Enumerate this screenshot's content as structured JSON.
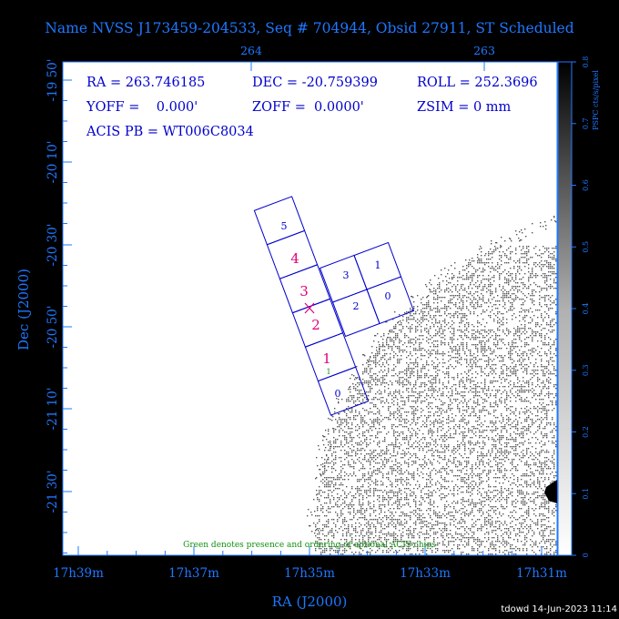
{
  "title": "Name NVSS J173459-204533, Seq # 704944, Obsid 27911, ST Scheduled",
  "info": {
    "ra": "RA = 263.746185",
    "dec": "DEC = -20.759399",
    "roll": "ROLL = 252.3696",
    "yoff": "YOFF =    0.000'",
    "zoff": "ZOFF =  0.0000'",
    "zsim": "ZSIM = 0 mm",
    "acis": "ACIS PB = WT006C8034"
  },
  "note": "Green denotes presence and ordering of optional ACIS chips",
  "footer": "tdowd 14-Jun-2023 11:14",
  "colors": {
    "axis": "#1e78ff",
    "text": "#0000cc",
    "magenta": "#e0007a",
    "green": "#109010"
  },
  "chart_data": {
    "type": "scatter",
    "xlabel": "RA (J2000)",
    "ylabel": "Dec (J2000)",
    "x_ticks_bottom": [
      "17h39m",
      "17h37m",
      "17h35m",
      "17h33m",
      "17h31m"
    ],
    "x_ticks_top": [
      "264",
      "263"
    ],
    "y_ticks": [
      "-19 50'",
      "-20 10'",
      "-20 30'",
      "-20 50'",
      "-21 10'",
      "-21 30'"
    ],
    "colorbar": {
      "label": "PSPC cts/s/pixel",
      "ticks": [
        "0",
        "0.1",
        "0.2",
        "0.3",
        "0.4",
        "0.5",
        "0.6",
        "0.7",
        "0.8"
      ],
      "range": [
        0,
        0.8
      ]
    },
    "chips": [
      {
        "label": "5",
        "style": "plain"
      },
      {
        "label": "4",
        "style": "selected"
      },
      {
        "label": "3",
        "style": "selected"
      },
      {
        "label": "2",
        "style": "selected"
      },
      {
        "label": "1",
        "style": "selected",
        "optional": "1"
      },
      {
        "label": "0",
        "style": "plain"
      }
    ],
    "i_chips": [
      {
        "label": "3"
      },
      {
        "label": "1"
      },
      {
        "label": "2"
      },
      {
        "label": "0"
      }
    ],
    "aimpoint": {
      "ra": 263.746185,
      "dec": -20.759399
    }
  }
}
